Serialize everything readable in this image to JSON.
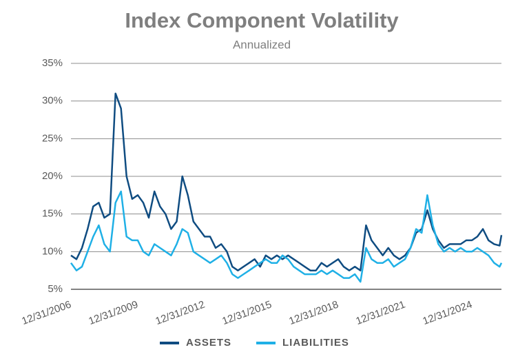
{
  "chart_data": {
    "type": "line",
    "title": "Index Component Volatility",
    "subtitle": "Annualized",
    "x": [
      "2006-12-31",
      "2007-03-31",
      "2007-06-30",
      "2007-09-30",
      "2007-12-31",
      "2008-03-31",
      "2008-06-30",
      "2008-09-30",
      "2008-12-31",
      "2009-03-31",
      "2009-06-30",
      "2009-09-30",
      "2009-12-31",
      "2010-03-31",
      "2010-06-30",
      "2010-09-30",
      "2010-12-31",
      "2011-03-31",
      "2011-06-30",
      "2011-09-30",
      "2011-12-31",
      "2012-03-31",
      "2012-06-30",
      "2012-09-30",
      "2012-12-31",
      "2013-03-31",
      "2013-06-30",
      "2013-09-30",
      "2013-12-31",
      "2014-03-31",
      "2014-06-30",
      "2014-09-30",
      "2014-12-31",
      "2015-03-31",
      "2015-06-30",
      "2015-09-30",
      "2015-12-31",
      "2016-03-31",
      "2016-06-30",
      "2016-09-30",
      "2016-12-31",
      "2017-03-31",
      "2017-06-30",
      "2017-09-30",
      "2017-12-31",
      "2018-03-31",
      "2018-06-30",
      "2018-09-30",
      "2018-12-31",
      "2019-03-31",
      "2019-06-30",
      "2019-09-30",
      "2019-12-31",
      "2020-03-31",
      "2020-06-30",
      "2020-09-30",
      "2020-12-31",
      "2021-03-31",
      "2021-06-30",
      "2021-09-30",
      "2021-12-31",
      "2022-03-31",
      "2022-06-30",
      "2022-09-30",
      "2022-12-31",
      "2023-03-31",
      "2023-06-30",
      "2023-09-30",
      "2023-12-31",
      "2024-03-31",
      "2024-06-30",
      "2024-09-30",
      "2024-12-31",
      "2025-03-31",
      "2025-06-30",
      "2025-09-30",
      "2025-12-31",
      "2026-03-31",
      "2026-04-30"
    ],
    "series": [
      {
        "name": "ASSETS",
        "color": "#0f4c81",
        "values": [
          9.5,
          9.0,
          10.5,
          13.0,
          16.0,
          16.5,
          14.5,
          15.0,
          31.0,
          29.0,
          20.0,
          17.0,
          17.5,
          16.5,
          14.5,
          18.0,
          16.0,
          15.0,
          13.0,
          14.0,
          20.0,
          17.5,
          14.0,
          13.0,
          12.0,
          12.0,
          10.5,
          11.0,
          10.0,
          8.0,
          7.5,
          8.0,
          8.5,
          9.0,
          8.0,
          9.5,
          9.0,
          9.5,
          9.0,
          9.5,
          9.0,
          8.5,
          8.0,
          7.5,
          7.5,
          8.5,
          8.0,
          8.5,
          9.0,
          8.0,
          7.5,
          8.0,
          7.5,
          13.5,
          11.5,
          10.5,
          9.5,
          10.5,
          9.5,
          9.0,
          9.5,
          10.5,
          12.5,
          13.0,
          15.5,
          13.0,
          11.5,
          10.5,
          11.0,
          11.0,
          11.0,
          11.5,
          11.5,
          12.0,
          13.0,
          11.5,
          11.0,
          10.8,
          12.2
        ]
      },
      {
        "name": "LIABILITIES",
        "color": "#1fb0e6",
        "values": [
          8.5,
          7.5,
          8.0,
          10.0,
          12.0,
          13.5,
          11.0,
          10.0,
          16.5,
          18.0,
          12.0,
          11.5,
          11.5,
          10.0,
          9.5,
          11.0,
          10.5,
          10.0,
          9.5,
          11.0,
          13.0,
          12.5,
          10.0,
          9.5,
          9.0,
          8.5,
          9.0,
          9.5,
          8.5,
          7.0,
          6.5,
          7.0,
          7.5,
          8.0,
          8.5,
          9.0,
          8.5,
          8.5,
          9.5,
          9.0,
          8.0,
          7.5,
          7.0,
          7.0,
          7.0,
          7.5,
          7.0,
          7.5,
          7.0,
          6.5,
          6.5,
          7.0,
          6.0,
          10.5,
          9.0,
          8.5,
          8.5,
          9.0,
          8.0,
          8.5,
          9.0,
          10.5,
          13.0,
          12.5,
          17.5,
          13.5,
          11.0,
          10.0,
          10.5,
          10.0,
          10.5,
          10.0,
          10.0,
          10.5,
          10.0,
          9.5,
          8.5,
          8.0,
          8.5
        ]
      }
    ],
    "xlim": [
      "2006-12-31",
      "2026-04-30"
    ],
    "xticks": [
      {
        "value": "2006-12-31",
        "label": "12/31/2006"
      },
      {
        "value": "2009-12-31",
        "label": "12/31/2009"
      },
      {
        "value": "2012-12-31",
        "label": "12/31/2012"
      },
      {
        "value": "2015-12-31",
        "label": "12/31/2015"
      },
      {
        "value": "2018-12-31",
        "label": "12/31/2018"
      },
      {
        "value": "2021-12-31",
        "label": "12/31/2021"
      },
      {
        "value": "2024-12-31",
        "label": "12/31/2024"
      }
    ],
    "ylim": [
      5,
      35
    ],
    "yticks": [
      {
        "value": 5,
        "label": "5%"
      },
      {
        "value": 10,
        "label": "10%"
      },
      {
        "value": 15,
        "label": "15%"
      },
      {
        "value": 20,
        "label": "20%"
      },
      {
        "value": 25,
        "label": "25%"
      },
      {
        "value": 30,
        "label": "30%"
      },
      {
        "value": 35,
        "label": "35%"
      }
    ],
    "grid": true,
    "legend": "bottom"
  }
}
